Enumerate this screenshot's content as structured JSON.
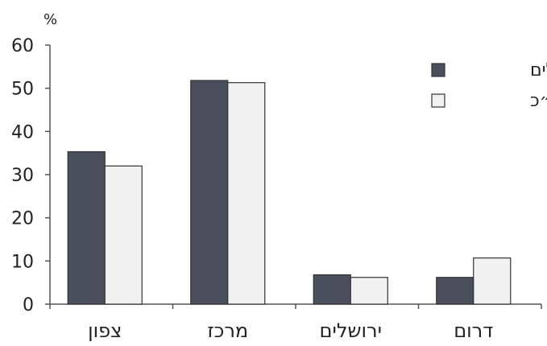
{
  "chart_data": {
    "type": "bar",
    "ylabel": "%",
    "ylim": [
      0,
      60
    ],
    "yticks": [
      "0",
      "10",
      "20",
      "30",
      "40",
      "50",
      "60"
    ],
    "categories": [
      "צפון",
      "מרכז",
      "ירושלים",
      "דרום"
    ],
    "series": [
      {
        "name": "מובילים",
        "values": [
          35.3,
          51.8,
          6.8,
          6.2
        ],
        "color": "#4a4f5c"
      },
      {
        "name": "סה״כ",
        "values": [
          32.0,
          51.3,
          6.2,
          10.7
        ],
        "color": "#f1f1f1"
      }
    ],
    "legend_position": "top-right",
    "grid": false
  }
}
